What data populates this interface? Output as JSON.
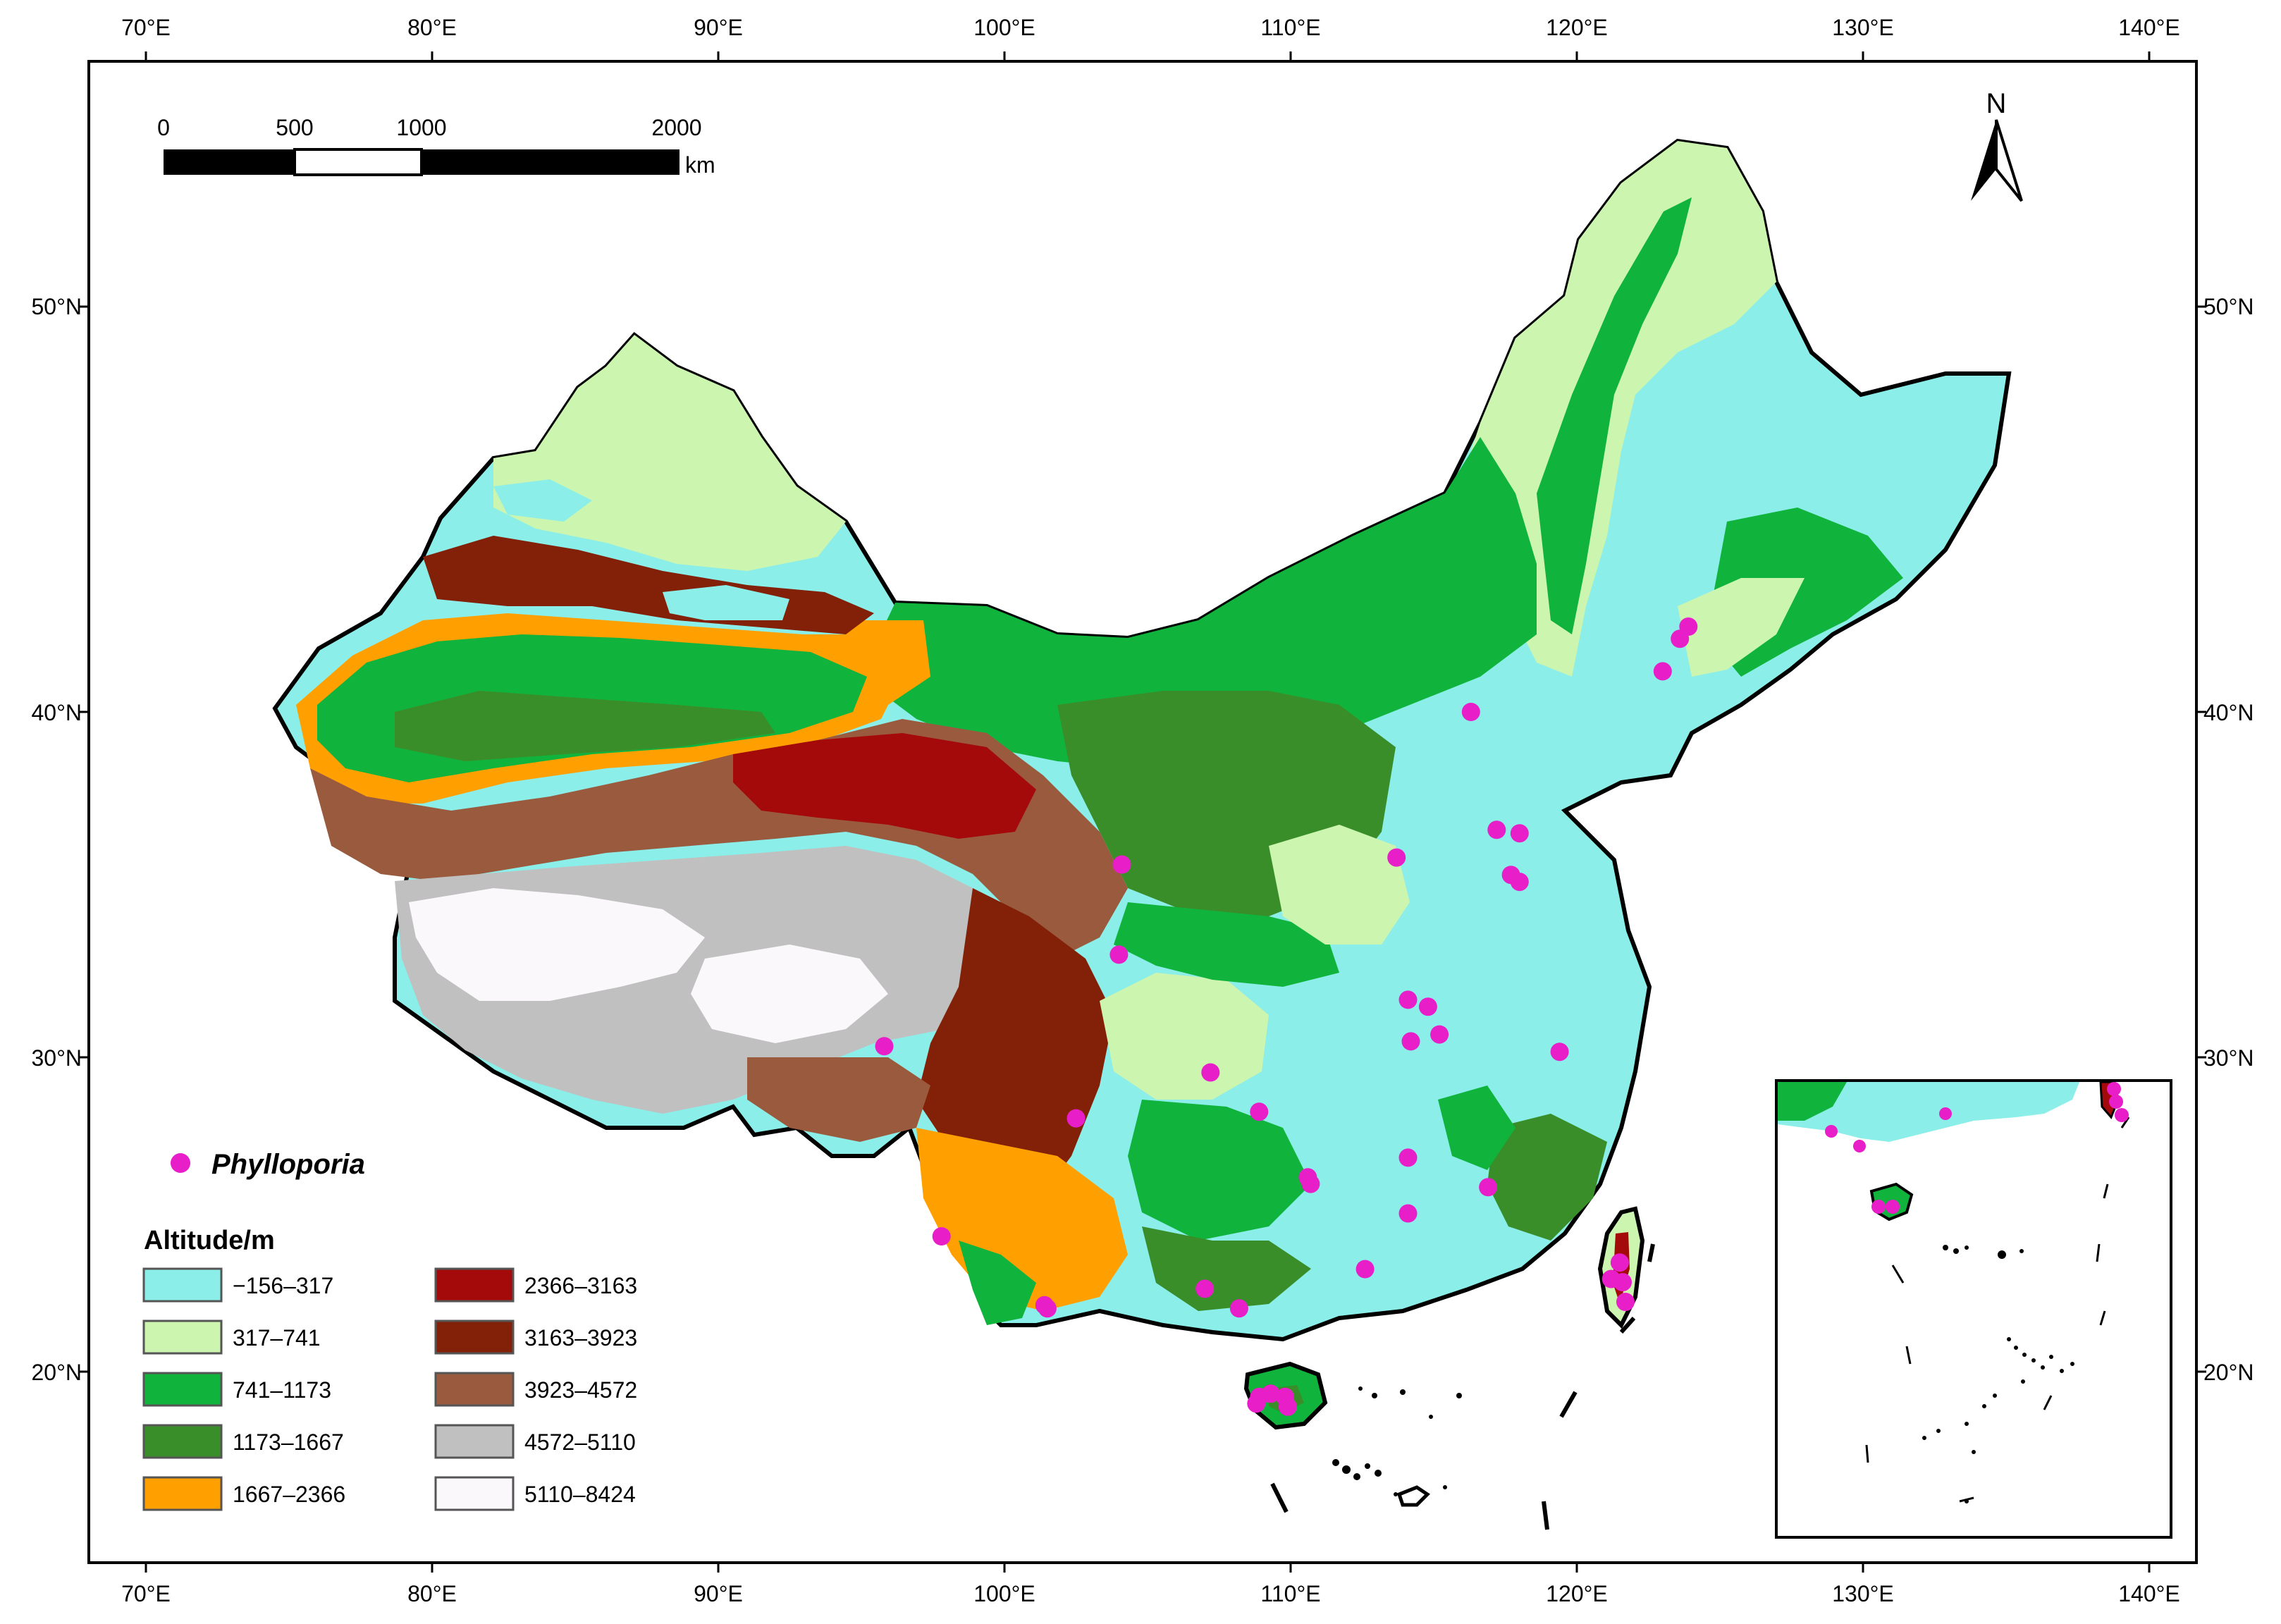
{
  "map": {
    "longitude_labels": [
      "70°E",
      "80°E",
      "90°E",
      "100°E",
      "110°E",
      "120°E",
      "130°E",
      "140°E"
    ],
    "latitude_labels": [
      "50°N",
      "40°N",
      "30°N",
      "20°N"
    ],
    "north_arrow_label": "N",
    "scale_bar": {
      "tick_labels": [
        "0",
        "500",
        "1000",
        "2000"
      ],
      "unit": "km"
    }
  },
  "legend": {
    "species_label": "Phylloporia",
    "species_color": "#e81ec8",
    "altitude_title": "Altitude/m",
    "altitude_classes": [
      {
        "label": "−156–317",
        "color": "#8beee8"
      },
      {
        "label": "317–741",
        "color": "#ccf5b0"
      },
      {
        "label": "741–1173",
        "color": "#10b43c"
      },
      {
        "label": "1173–1667",
        "color": "#3a8e2a"
      },
      {
        "label": "1667–2366",
        "color": "#ffa000"
      },
      {
        "label": "2366–3163",
        "color": "#a50a0a"
      },
      {
        "label": "3163–3923",
        "color": "#822008"
      },
      {
        "label": "3923–4572",
        "color": "#9a5a3e"
      },
      {
        "label": "4572–5110",
        "color": "#c0c0c0"
      },
      {
        "label": "5110–8424",
        "color": "#fbf8fc"
      }
    ]
  },
  "occurrence_points": [
    {
      "lon": 123.9,
      "lat": 42.1
    },
    {
      "lon": 123.6,
      "lat": 41.8
    },
    {
      "lon": 123.0,
      "lat": 41.0
    },
    {
      "lon": 116.3,
      "lat": 40.0
    },
    {
      "lon": 117.2,
      "lat": 36.6
    },
    {
      "lon": 118.0,
      "lat": 36.5
    },
    {
      "lon": 117.7,
      "lat": 35.3
    },
    {
      "lon": 118.0,
      "lat": 35.1
    },
    {
      "lon": 113.7,
      "lat": 35.8
    },
    {
      "lon": 104.1,
      "lat": 35.6
    },
    {
      "lon": 104.0,
      "lat": 33.0
    },
    {
      "lon": 114.1,
      "lat": 31.7
    },
    {
      "lon": 114.8,
      "lat": 31.5
    },
    {
      "lon": 114.2,
      "lat": 30.5
    },
    {
      "lon": 115.2,
      "lat": 30.7
    },
    {
      "lon": 119.4,
      "lat": 30.2
    },
    {
      "lon": 95.8,
      "lat": 29.8
    },
    {
      "lon": 107.2,
      "lat": 29.0
    },
    {
      "lon": 108.9,
      "lat": 27.8
    },
    {
      "lon": 102.5,
      "lat": 27.6
    },
    {
      "lon": 114.1,
      "lat": 26.4
    },
    {
      "lon": 110.6,
      "lat": 25.8
    },
    {
      "lon": 110.7,
      "lat": 25.6
    },
    {
      "lon": 116.9,
      "lat": 25.5
    },
    {
      "lon": 114.1,
      "lat": 24.7
    },
    {
      "lon": 97.8,
      "lat": 24.0
    },
    {
      "lon": 112.6,
      "lat": 23.0
    },
    {
      "lon": 107.0,
      "lat": 22.4
    },
    {
      "lon": 108.2,
      "lat": 21.8
    },
    {
      "lon": 101.4,
      "lat": 21.9
    },
    {
      "lon": 101.5,
      "lat": 21.8
    },
    {
      "lon": 121.5,
      "lat": 23.2
    },
    {
      "lon": 121.2,
      "lat": 22.7
    },
    {
      "lon": 121.6,
      "lat": 22.6
    },
    {
      "lon": 121.7,
      "lat": 22.0
    },
    {
      "lon": 108.9,
      "lat": 19.1
    },
    {
      "lon": 109.3,
      "lat": 19.2
    },
    {
      "lon": 109.8,
      "lat": 19.1
    },
    {
      "lon": 108.8,
      "lat": 18.9
    },
    {
      "lon": 109.9,
      "lat": 18.8
    }
  ]
}
